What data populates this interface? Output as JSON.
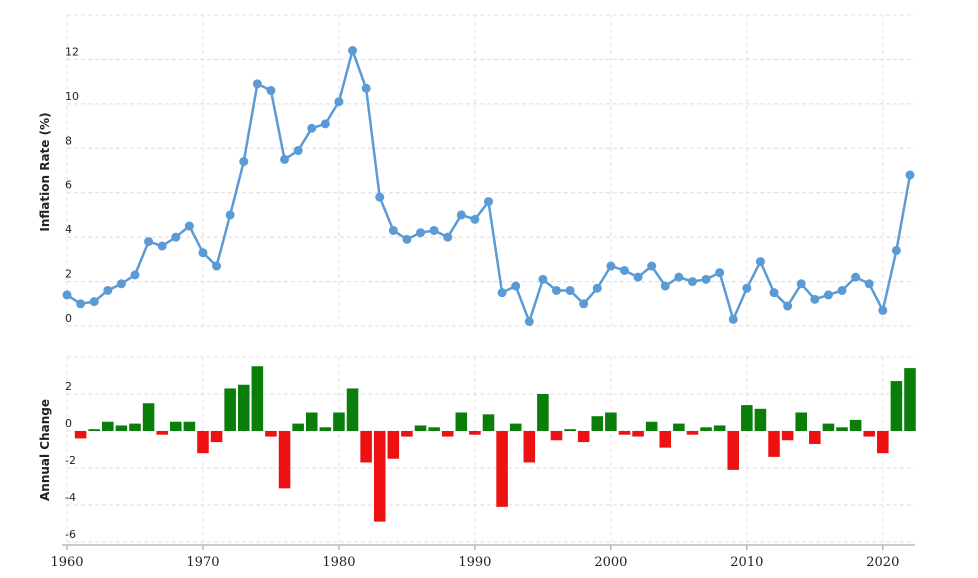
{
  "chart_data": [
    {
      "type": "line",
      "y_label": "Inflation Rate (%)",
      "x": [
        1960,
        1961,
        1962,
        1963,
        1964,
        1965,
        1966,
        1967,
        1968,
        1969,
        1970,
        1971,
        1972,
        1973,
        1974,
        1975,
        1976,
        1977,
        1978,
        1979,
        1980,
        1981,
        1982,
        1983,
        1984,
        1985,
        1986,
        1987,
        1988,
        1989,
        1990,
        1991,
        1992,
        1993,
        1994,
        1995,
        1996,
        1997,
        1998,
        1999,
        2000,
        2001,
        2002,
        2003,
        2004,
        2005,
        2006,
        2007,
        2008,
        2009,
        2010,
        2011,
        2012,
        2013,
        2014,
        2015,
        2016,
        2017,
        2018,
        2019,
        2020,
        2021,
        2022
      ],
      "values": [
        1.4,
        1.0,
        1.1,
        1.6,
        1.9,
        2.3,
        3.8,
        3.6,
        4.0,
        4.5,
        3.3,
        2.7,
        5.0,
        7.4,
        10.9,
        10.6,
        7.5,
        7.9,
        8.9,
        9.1,
        10.1,
        12.4,
        10.7,
        5.8,
        4.3,
        3.9,
        4.2,
        4.3,
        4.0,
        5.0,
        4.8,
        5.6,
        1.5,
        1.8,
        0.2,
        2.1,
        1.6,
        1.6,
        1.0,
        1.7,
        2.7,
        2.5,
        2.2,
        2.7,
        1.8,
        2.2,
        2.0,
        2.1,
        2.4,
        0.3,
        1.7,
        2.9,
        1.5,
        0.9,
        1.9,
        1.2,
        1.4,
        1.6,
        2.2,
        1.9,
        0.7,
        3.4,
        6.8
      ],
      "color": "#5b9bd5",
      "xlim": [
        1960,
        2022
      ],
      "ylim": [
        0,
        14
      ],
      "yticks": [
        0,
        2,
        4,
        6,
        8,
        10,
        12
      ],
      "grid": true
    },
    {
      "type": "bar",
      "y_label": "Annual Change",
      "x": [
        1961,
        1962,
        1963,
        1964,
        1965,
        1966,
        1967,
        1968,
        1969,
        1970,
        1971,
        1972,
        1973,
        1974,
        1975,
        1976,
        1977,
        1978,
        1979,
        1980,
        1981,
        1982,
        1983,
        1984,
        1985,
        1986,
        1987,
        1988,
        1989,
        1990,
        1991,
        1992,
        1993,
        1994,
        1995,
        1996,
        1997,
        1998,
        1999,
        2000,
        2001,
        2002,
        2003,
        2004,
        2005,
        2006,
        2007,
        2008,
        2009,
        2010,
        2011,
        2012,
        2013,
        2014,
        2015,
        2016,
        2017,
        2018,
        2019,
        2020,
        2021,
        2022
      ],
      "values": [
        -0.4,
        0.1,
        0.5,
        0.3,
        0.4,
        1.5,
        -0.2,
        0.5,
        0.5,
        -1.2,
        -0.6,
        2.3,
        2.5,
        3.5,
        -0.3,
        -3.1,
        0.4,
        1.0,
        0.2,
        1.0,
        2.3,
        -1.7,
        -4.9,
        -1.5,
        -0.3,
        0.3,
        0.2,
        -0.3,
        1.0,
        -0.2,
        0.9,
        -4.1,
        0.4,
        -1.7,
        2.0,
        -0.5,
        0.1,
        -0.6,
        0.8,
        1.0,
        -0.2,
        -0.3,
        0.5,
        -0.9,
        0.4,
        -0.2,
        0.2,
        0.3,
        -2.1,
        1.4,
        1.2,
        -1.4,
        -0.5,
        1.0,
        -0.7,
        0.4,
        0.2,
        0.6,
        -0.3,
        -1.2,
        2.7,
        3.4
      ],
      "positive_color": "#0a7d0a",
      "negative_color": "#ee1111",
      "xlim": [
        1960,
        2022
      ],
      "xticks": [
        1960,
        1970,
        1980,
        1990,
        2000,
        2010,
        2020
      ],
      "ylim": [
        -6,
        4
      ],
      "yticks": [
        -6,
        -4,
        -2,
        0,
        2
      ],
      "grid": true
    }
  ]
}
